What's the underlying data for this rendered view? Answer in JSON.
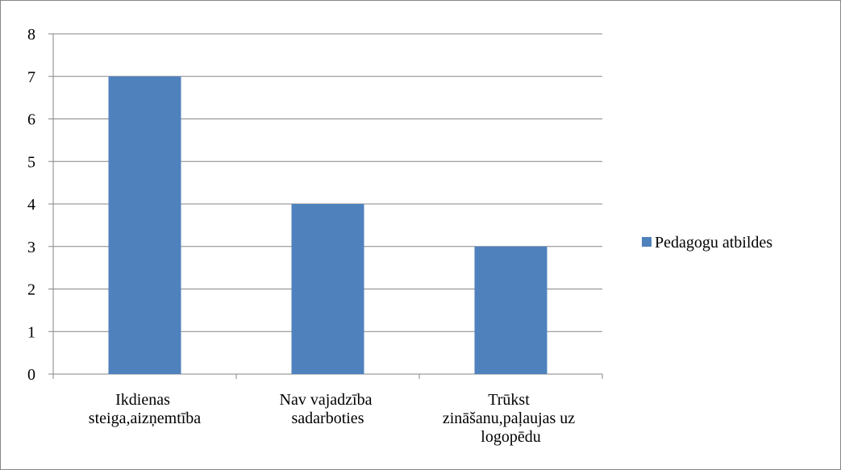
{
  "chart_data": {
    "type": "bar",
    "categories": [
      "Ikdienas steiga,aizņemtība",
      "Nav vajadzība sadarboties",
      "Trūkst zināšanu,paļaujas uz logopēdu"
    ],
    "series": [
      {
        "name": "Pedagogu atbildes",
        "color": "#4f81bd",
        "values": [
          7,
          4,
          3
        ]
      }
    ],
    "ylim": [
      0,
      8
    ],
    "yticks": [
      0,
      1,
      2,
      3,
      4,
      5,
      6,
      7,
      8
    ],
    "grid": true,
    "legend": "right"
  }
}
